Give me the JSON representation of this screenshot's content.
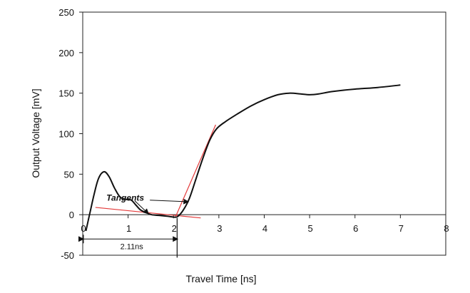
{
  "chart_data": {
    "type": "line",
    "title": "",
    "xlabel": "Travel Time [ns]",
    "ylabel": "Output Voltage [mV]",
    "xlim": [
      0,
      8
    ],
    "ylim": [
      -50,
      250
    ],
    "xticks": [
      0,
      1,
      2,
      3,
      4,
      5,
      6,
      7,
      8
    ],
    "xtick_labels": [
      "0",
      "1",
      "2",
      "3",
      "4",
      "5",
      "6",
      "7",
      "8"
    ],
    "yticks": [
      -50,
      0,
      50,
      100,
      150,
      200,
      250
    ],
    "ytick_labels": [
      "-50",
      "0",
      "50",
      "100",
      "150",
      "200",
      "250"
    ],
    "grid": false,
    "legend": "none",
    "series": [
      {
        "color": "#111111",
        "points": [
          [
            0.07,
            -20
          ],
          [
            0.15,
            0
          ],
          [
            0.25,
            25
          ],
          [
            0.35,
            45
          ],
          [
            0.47,
            53
          ],
          [
            0.58,
            47
          ],
          [
            0.7,
            33
          ],
          [
            0.82,
            22
          ],
          [
            0.95,
            19
          ],
          [
            1.07,
            18
          ],
          [
            1.17,
            12
          ],
          [
            1.27,
            6
          ],
          [
            1.38,
            3
          ],
          [
            1.52,
            0
          ],
          [
            1.7,
            -1
          ],
          [
            1.88,
            -2
          ],
          [
            2.03,
            -3
          ],
          [
            2.1,
            -2
          ],
          [
            2.22,
            6
          ],
          [
            2.35,
            20
          ],
          [
            2.5,
            45
          ],
          [
            2.65,
            70
          ],
          [
            2.8,
            92
          ],
          [
            2.95,
            106
          ],
          [
            3.15,
            115
          ],
          [
            3.4,
            124
          ],
          [
            3.7,
            134
          ],
          [
            4.0,
            142
          ],
          [
            4.3,
            148
          ],
          [
            4.55,
            150
          ],
          [
            4.8,
            149
          ],
          [
            5.0,
            148
          ],
          [
            5.2,
            149
          ],
          [
            5.5,
            152
          ],
          [
            6.0,
            155
          ],
          [
            6.5,
            157
          ],
          [
            7.0,
            160
          ]
        ]
      }
    ],
    "tangents": [
      {
        "color": "#e33a3a",
        "points": [
          [
            0.28,
            9
          ],
          [
            2.6,
            -4
          ]
        ]
      },
      {
        "color": "#e33a3a",
        "points": [
          [
            2.05,
            -2
          ],
          [
            2.93,
            111
          ]
        ]
      }
    ],
    "annotations": [
      {
        "text": "Tangents",
        "x": 1.0,
        "y": 21
      },
      {
        "text": "2.11ns",
        "x": 1.08,
        "y": -39,
        "span": [
          0.0,
          2.11
        ]
      }
    ],
    "arrows": [
      {
        "from": [
          1.48,
          18
        ],
        "to": [
          2.33,
          16
        ]
      },
      {
        "from": [
          1.15,
          17
        ],
        "to": [
          1.45,
          1
        ]
      }
    ],
    "markers": [
      {
        "type": "vertical",
        "x": 2.08,
        "y_from": -4,
        "y_to": -53
      }
    ]
  }
}
